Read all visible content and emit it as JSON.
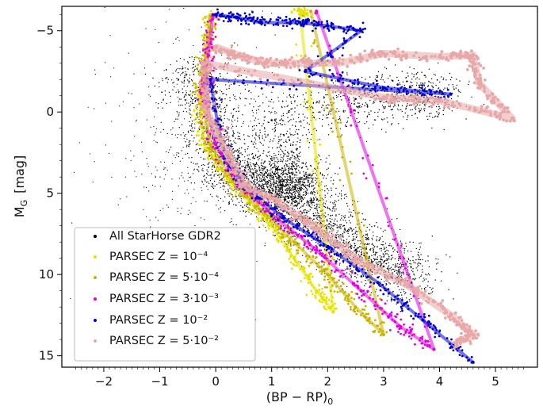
{
  "chart_data": {
    "type": "scatter",
    "xlabel": "(BP − RP)₀",
    "ylabel": "M_G [mag]",
    "ylabel_main": "M",
    "ylabel_sub": "G",
    "ylabel_unit": "[mag]",
    "xlabel_main": "(BP − RP)",
    "xlabel_sub": "0",
    "xlim": [
      -2.75,
      5.75
    ],
    "ylim": [
      15.7,
      -6.5
    ],
    "y_inverted": true,
    "grid": false,
    "legend_position": "lower-left",
    "x_ticks": [
      {
        "value": -2,
        "label": "−2"
      },
      {
        "value": -1,
        "label": "−1"
      },
      {
        "value": 0,
        "label": "0"
      },
      {
        "value": 1,
        "label": "1"
      },
      {
        "value": 2,
        "label": "2"
      },
      {
        "value": 3,
        "label": "3"
      },
      {
        "value": 4,
        "label": "4"
      },
      {
        "value": 5,
        "label": "5"
      }
    ],
    "y_ticks": [
      {
        "value": -5,
        "label": "−5"
      },
      {
        "value": 0,
        "label": "0"
      },
      {
        "value": 5,
        "label": "5"
      },
      {
        "value": 10,
        "label": "10"
      },
      {
        "value": 15,
        "label": "15"
      }
    ],
    "series": [
      {
        "name": "All StarHorse GDR2",
        "color": "#000000",
        "note_values": "dense cloud of stars; representative ridge points",
        "points": [
          [
            -0.3,
            -2.5
          ],
          [
            -0.2,
            -1.0
          ],
          [
            0.0,
            2.0
          ],
          [
            0.3,
            3.5
          ],
          [
            0.6,
            4.5
          ],
          [
            1.0,
            5.0
          ],
          [
            1.3,
            5.3
          ],
          [
            1.6,
            6.5
          ],
          [
            2.0,
            7.5
          ],
          [
            2.5,
            8.5
          ],
          [
            3.0,
            9.5
          ],
          [
            3.5,
            10.5
          ],
          [
            1.1,
            3.5
          ],
          [
            1.2,
            4.5
          ],
          [
            1.5,
            4.7
          ],
          [
            1.0,
            0.5
          ],
          [
            2.5,
            -0.8
          ],
          [
            3.5,
            -1.0
          ],
          [
            4.0,
            -1.2
          ]
        ]
      },
      {
        "name": "PARSEC Z = 10⁻⁴",
        "color": "#e5e400",
        "points": [
          [
            -0.1,
            -6.0
          ],
          [
            -0.15,
            -3.0
          ],
          [
            -0.3,
            -1.0
          ],
          [
            -0.2,
            2.0
          ],
          [
            0.2,
            4.0
          ],
          [
            0.6,
            5.5
          ],
          [
            1.0,
            7.0
          ],
          [
            1.4,
            9.0
          ],
          [
            1.8,
            11.0
          ],
          [
            2.1,
            12.3
          ],
          [
            1.5,
            -6.3
          ],
          [
            1.6,
            -6.0
          ]
        ]
      },
      {
        "name": "PARSEC Z = 5·10⁻⁴",
        "color": "#c8b400",
        "points": [
          [
            -0.1,
            -5.9
          ],
          [
            -0.2,
            -3.0
          ],
          [
            -0.25,
            -1.0
          ],
          [
            -0.1,
            2.0
          ],
          [
            0.3,
            4.2
          ],
          [
            0.8,
            6.0
          ],
          [
            1.4,
            8.0
          ],
          [
            2.0,
            10.0
          ],
          [
            2.5,
            12.0
          ],
          [
            3.0,
            13.7
          ],
          [
            1.7,
            -6.2
          ]
        ]
      },
      {
        "name": "PARSEC Z = 3·10⁻³",
        "color": "#e000e0",
        "points": [
          [
            -0.05,
            -6.0
          ],
          [
            -0.15,
            -3.0
          ],
          [
            -0.2,
            -1.0
          ],
          [
            0.0,
            2.0
          ],
          [
            0.4,
            4.3
          ],
          [
            1.0,
            6.3
          ],
          [
            1.8,
            8.5
          ],
          [
            2.6,
            11.0
          ],
          [
            3.3,
            13.2
          ],
          [
            3.9,
            14.6
          ],
          [
            1.8,
            -6.2
          ]
        ]
      },
      {
        "name": "PARSEC Z = 10⁻²",
        "color": "#0000cc",
        "points": [
          [
            0.0,
            -6.0
          ],
          [
            0.4,
            -5.8
          ],
          [
            0.8,
            -5.5
          ],
          [
            1.5,
            -5.5
          ],
          [
            2.0,
            -5.3
          ],
          [
            2.6,
            -5.0
          ],
          [
            1.6,
            -2.5
          ],
          [
            3.0,
            -1.5
          ],
          [
            4.2,
            -1.1
          ],
          [
            -0.1,
            -2.0
          ],
          [
            0.1,
            2.0
          ],
          [
            0.5,
            4.5
          ],
          [
            1.2,
            6.5
          ],
          [
            2.0,
            8.3
          ],
          [
            2.9,
            10.5
          ],
          [
            3.7,
            12.8
          ],
          [
            4.6,
            15.4
          ]
        ]
      },
      {
        "name": "PARSEC Z = 5·10⁻²",
        "color": "#e8a8a8",
        "points": [
          [
            0.0,
            -4.0
          ],
          [
            0.4,
            -3.5
          ],
          [
            0.9,
            -3.0
          ],
          [
            1.4,
            -3.0
          ],
          [
            2.2,
            -3.0
          ],
          [
            3.0,
            -3.6
          ],
          [
            4.0,
            -3.4
          ],
          [
            4.6,
            -3.5
          ],
          [
            4.7,
            -1.8
          ],
          [
            5.3,
            0.4
          ],
          [
            4.0,
            -0.7
          ],
          [
            3.0,
            -0.9
          ],
          [
            -0.2,
            -3.0
          ],
          [
            -0.15,
            0.0
          ],
          [
            0.2,
            2.5
          ],
          [
            0.5,
            4.5
          ],
          [
            1.1,
            5.5
          ],
          [
            1.8,
            7.2
          ],
          [
            2.5,
            9.0
          ],
          [
            3.4,
            10.6
          ],
          [
            4.2,
            12.5
          ],
          [
            4.6,
            13.7
          ],
          [
            4.3,
            14.2
          ]
        ]
      }
    ]
  }
}
